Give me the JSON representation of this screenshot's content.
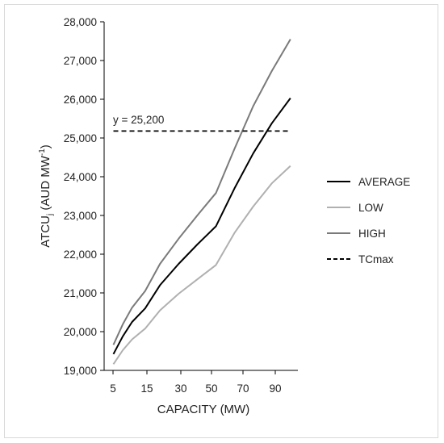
{
  "chart_data": {
    "type": "line",
    "xlabel": "CAPACITY (MW)",
    "ylabel": {
      "main": "ATCU",
      "sub": "j",
      "rest": " (AUD MW",
      "sup": "-1",
      "end": ")"
    },
    "x_ticks": [
      "5",
      "15",
      "30",
      "50",
      "70",
      "90"
    ],
    "ylim": [
      19000,
      28000
    ],
    "y_ticks": [
      19000,
      20000,
      21000,
      22000,
      23000,
      24000,
      25000,
      26000,
      27000,
      28000
    ],
    "y_tick_labels": [
      "19,000",
      "20,000",
      "21,000",
      "22,000",
      "23,000",
      "24,000",
      "25,000",
      "26,000",
      "27,000",
      "28,000"
    ],
    "x": [
      5,
      10,
      15,
      22,
      30,
      40,
      50,
      60,
      70,
      80,
      90,
      100
    ],
    "xlim": [
      0,
      104
    ],
    "series": [
      {
        "name": "AVERAGE",
        "color": "#000000",
        "style": "solid",
        "values": [
          19420,
          19880,
          20250,
          20600,
          21200,
          21750,
          22250,
          22720,
          23700,
          24600,
          25380,
          26030
        ]
      },
      {
        "name": "LOW",
        "color": "#b0b0b0",
        "style": "solid",
        "values": [
          19160,
          19520,
          19800,
          20080,
          20550,
          20980,
          21350,
          21720,
          22550,
          23230,
          23830,
          24280
        ]
      },
      {
        "name": "HIGH",
        "color": "#7a7a7a",
        "style": "solid",
        "values": [
          19660,
          20190,
          20620,
          21050,
          21750,
          22400,
          23000,
          23580,
          24720,
          25820,
          26730,
          27550
        ]
      },
      {
        "name": "TCmax",
        "color": "#000000",
        "style": "dashed",
        "values": [
          25180,
          25180,
          25180,
          25180,
          25180,
          25180,
          25180,
          25180,
          25180,
          25180,
          25180,
          25180
        ]
      }
    ],
    "annotation": "y = 25,200",
    "legend_position": "right",
    "grid": false
  }
}
